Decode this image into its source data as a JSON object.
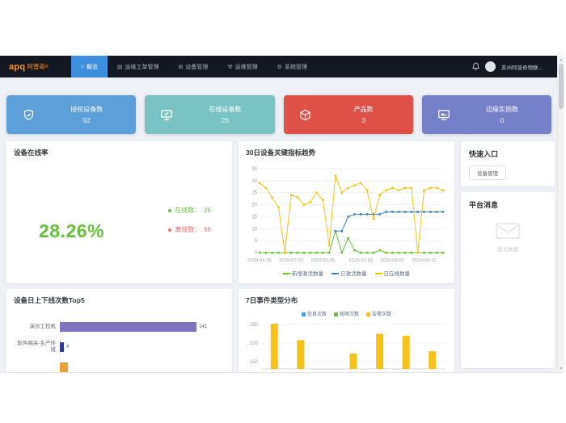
{
  "navbar": {
    "logo": "apq",
    "logo_cn": "阿普奇",
    "logo_sup": "®",
    "menu": [
      {
        "label": "概览",
        "icon": "home",
        "active": true
      },
      {
        "label": "运维工单管理",
        "icon": "clipboard",
        "active": false
      },
      {
        "label": "设备管理",
        "icon": "grid",
        "active": false
      },
      {
        "label": "运维管理",
        "icon": "tools",
        "active": false
      },
      {
        "label": "系统管理",
        "icon": "gear",
        "active": false
      }
    ],
    "user": "苏州阿普奇物联网科...",
    "active_color": "#3d8edc"
  },
  "stat_cards": [
    {
      "label": "授权设备数",
      "value": "92",
      "color": "#5C9FD9",
      "icon": "shield-check"
    },
    {
      "label": "在线设备数",
      "value": "26",
      "color": "#7AC3C3",
      "icon": "monitor-check"
    },
    {
      "label": "产品数",
      "value": "3",
      "color": "#DF5146",
      "icon": "cube"
    },
    {
      "label": "边缘实例数",
      "value": "0",
      "color": "#7680C8",
      "icon": "edge-instance"
    }
  ],
  "online_rate": {
    "title": "设备在线率",
    "value": "28.26%",
    "value_color": "#67C23A",
    "legend": [
      {
        "label": "在线数：",
        "value": "26",
        "color": "#67C23A"
      },
      {
        "label": "离线数：",
        "value": "66",
        "color": "#F56C6C"
      }
    ]
  },
  "quick_entry": {
    "title": "快速入口",
    "button": "设备管理"
  },
  "platform_messages": {
    "title": "平台消息",
    "empty_text": "暂无数据"
  },
  "chart_data": [
    {
      "id": "trend",
      "type": "line",
      "title": "30日设备关键指标趋势",
      "x_count": 30,
      "x_tick_labels": [
        "2020-02-15",
        "2020-02-20",
        "2020-02-25",
        "2020-03-02",
        "2020-03-07",
        "2020-03-12"
      ],
      "x_tick_indices": [
        0,
        5,
        10,
        16,
        21,
        26
      ],
      "ylim": [
        0,
        35
      ],
      "yticks": [
        0,
        5,
        10,
        15,
        20,
        25,
        30,
        35
      ],
      "grid": true,
      "legend_position": "bottom",
      "series": [
        {
          "name": "新增激活数量",
          "color": "#67C23A",
          "values": [
            0,
            0,
            0,
            0,
            0,
            0,
            0,
            0,
            0,
            0,
            0,
            0,
            9,
            0,
            6,
            1,
            0,
            0,
            0,
            1,
            0,
            0,
            0,
            0,
            0,
            0,
            0,
            0,
            0,
            0
          ]
        },
        {
          "name": "已激活数量",
          "color": "#4484C4",
          "values": [
            null,
            null,
            null,
            null,
            null,
            null,
            null,
            null,
            null,
            null,
            null,
            null,
            9,
            9,
            15,
            16,
            16,
            16,
            16,
            16,
            17,
            17,
            17,
            17,
            17,
            17,
            17,
            17,
            17,
            17
          ]
        },
        {
          "name": "日在线数量",
          "color": "#F5C319",
          "values": [
            29,
            27,
            23,
            19,
            0,
            24,
            23,
            20,
            21,
            25,
            22,
            3,
            32,
            25,
            27,
            28,
            29,
            26,
            14,
            24,
            26,
            27,
            26,
            27,
            27,
            0,
            26,
            27,
            27,
            26
          ]
        }
      ]
    },
    {
      "id": "top5",
      "type": "barh",
      "title": "设备日上下线次数Top5",
      "categories": [
        "演示工控机",
        "软件网关-生产环境"
      ],
      "values": [
        141,
        4
      ],
      "bar_colors": [
        "#8073BE",
        "#2E3D8F"
      ],
      "xlim": [
        0,
        150
      ],
      "partial_bar_color": "#E6A23C"
    },
    {
      "id": "events",
      "type": "bar",
      "title": "7日事件类型分布",
      "legend": [
        {
          "name": "信息次数",
          "color": "#409EFF"
        },
        {
          "name": "故障次数",
          "color": "#67C23A"
        },
        {
          "name": "告警次数",
          "color": "#F5C319"
        }
      ],
      "bar_color": "#F5C319",
      "values": [
        252,
        208,
        0,
        172,
        225,
        220,
        178
      ],
      "yticks": [
        150,
        200,
        250
      ],
      "ylim_visible": [
        130,
        260
      ],
      "grid": true
    }
  ]
}
